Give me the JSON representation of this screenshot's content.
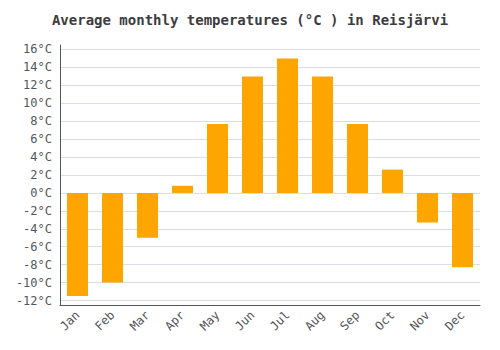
{
  "chart_data": {
    "type": "bar",
    "title": "Average monthly temperatures (°C ) in Reisjärvi",
    "categories": [
      "Jan",
      "Feb",
      "Mar",
      "Apr",
      "May",
      "Jun",
      "Jul",
      "Aug",
      "Sep",
      "Oct",
      "Nov",
      "Dec"
    ],
    "values": [
      -11.5,
      -10.0,
      -5.0,
      0.8,
      7.7,
      13.0,
      15.0,
      13.0,
      7.7,
      2.6,
      -3.3,
      -8.3
    ],
    "color": "#FFA500",
    "ylim": [
      -12.5,
      16.5
    ],
    "yticks": [
      {
        "value": -12,
        "label": "-12°C"
      },
      {
        "value": -10,
        "label": "-10°C"
      },
      {
        "value": -8,
        "label": "-8°C"
      },
      {
        "value": -6,
        "label": "-6°C"
      },
      {
        "value": -4,
        "label": "-4°C"
      },
      {
        "value": -2,
        "label": "-2°C"
      },
      {
        "value": 0,
        "label": "0°C"
      },
      {
        "value": 2,
        "label": "2°C"
      },
      {
        "value": 4,
        "label": "4°C"
      },
      {
        "value": 6,
        "label": "6°C"
      },
      {
        "value": 8,
        "label": "8°C"
      },
      {
        "value": 10,
        "label": "10°C"
      },
      {
        "value": 12,
        "label": "12°C"
      },
      {
        "value": 14,
        "label": "14°C"
      },
      {
        "value": 16,
        "label": "16°C"
      }
    ],
    "grid": true
  }
}
